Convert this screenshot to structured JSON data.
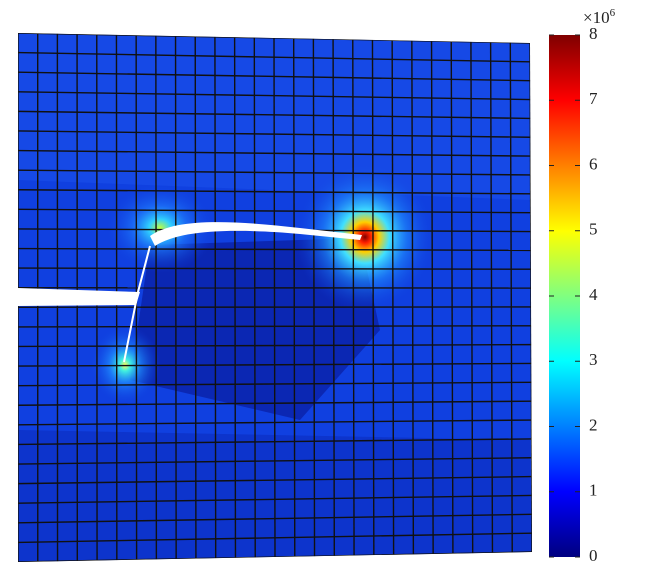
{
  "chart_data": {
    "type": "contour",
    "colormap": "jet",
    "clim": [
      0,
      8
    ],
    "cticks": [
      0,
      1,
      2,
      3,
      4,
      5,
      6,
      7,
      8
    ],
    "colorbar_multiplier_base": "×10",
    "colorbar_multiplier_exponent": "6"
  }
}
